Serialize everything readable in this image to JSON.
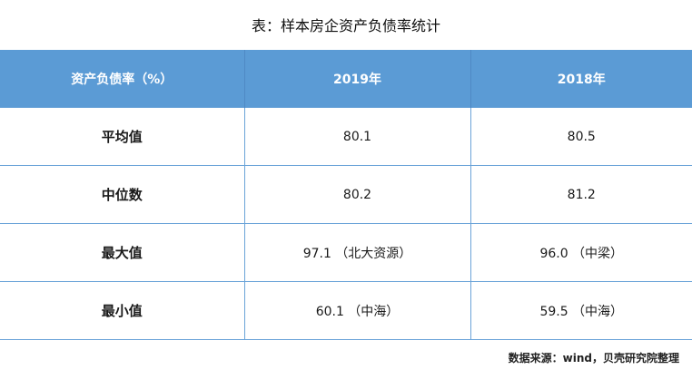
{
  "chart_data": {
    "type": "table",
    "title": "表：样本房企资产负债率统计",
    "columns": [
      "资产负债率（%）",
      "2019年",
      "2018年"
    ],
    "rows": [
      [
        "平均值",
        "80.1",
        "80.5"
      ],
      [
        "中位数",
        "80.2",
        "81.2"
      ],
      [
        "最大值",
        "97.1 （北大资源）",
        "96.0 （中梁）"
      ],
      [
        "最小值",
        "60.1 （中海）",
        "59.5 （中海）"
      ]
    ],
    "source": "数据来源：wind，贝壳研究院整理",
    "colors": {
      "header_bg": "#5b9bd5",
      "header_text": "#ffffff",
      "border": "#6aa3d8"
    }
  }
}
